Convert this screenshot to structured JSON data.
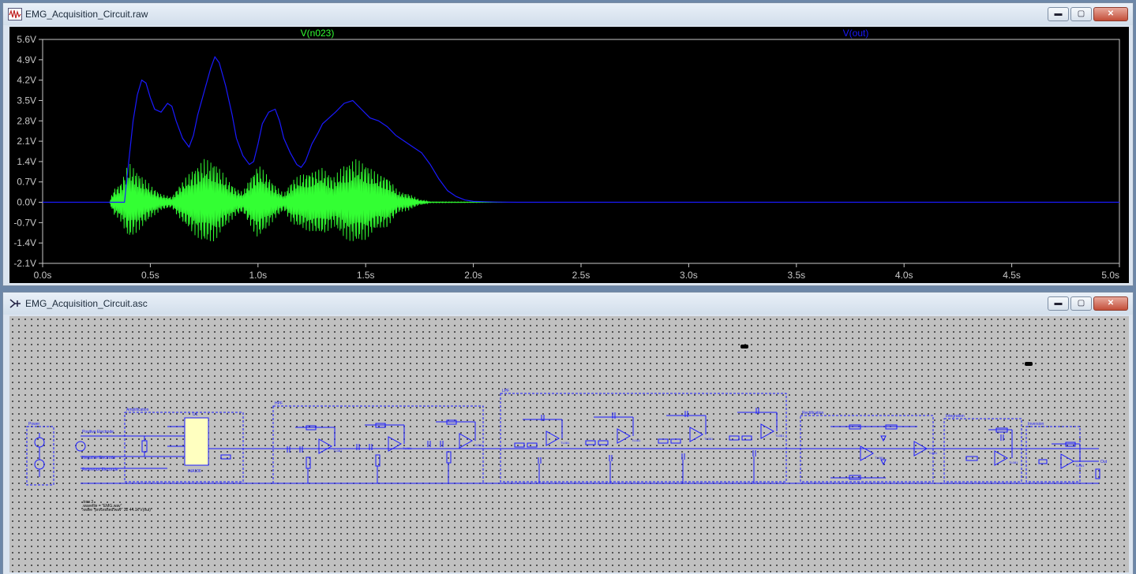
{
  "windows": {
    "waveform": {
      "title": "EMG_Acquisition_Circuit.raw",
      "traces": [
        {
          "label": "V(n023)",
          "color": "#33ff33"
        },
        {
          "label": "V(out)",
          "color": "#1a1aff"
        }
      ]
    },
    "schematic": {
      "title": "EMG_Acquisition_Circuit.asc",
      "blocks": [
        "Power",
        "Amplification",
        "HPF",
        "LPF",
        "Rectification",
        "Integration",
        "Inversion"
      ],
      "labels": {
        "positive_electrode": "Positive Electrode",
        "negative_electrode": "Negative Electrode",
        "reference_electrode": "Reference Electrode",
        "u1": "U1",
        "inamp": "INA106",
        "opamp": "TL081",
        "out": "Out"
      },
      "directives": [
        ".tran 3",
        ".wavefile = \"EMG.wav\"",
        ".wave \"processed.wav\" 32 44.1k V(out)"
      ]
    }
  },
  "window_buttons": {
    "minimize": "▬",
    "maximize": "▢",
    "close": "✕"
  },
  "chart_data": {
    "type": "line",
    "title": "",
    "xlabel": "",
    "ylabel": "",
    "xlim": [
      0,
      5
    ],
    "ylim": [
      -2.1,
      5.6
    ],
    "x_ticks": [
      "0.0s",
      "0.5s",
      "1.0s",
      "1.5s",
      "2.0s",
      "2.5s",
      "3.0s",
      "3.5s",
      "4.0s",
      "4.5s",
      "5.0s"
    ],
    "y_ticks": [
      "5.6V",
      "4.9V",
      "4.2V",
      "3.5V",
      "2.8V",
      "2.1V",
      "1.4V",
      "0.7V",
      "0.0V",
      "-0.7V",
      "-1.4V",
      "-2.1V"
    ],
    "series": [
      {
        "name": "V(out)",
        "color": "#1a1aff",
        "x": [
          0,
          0.38,
          0.4,
          0.42,
          0.44,
          0.46,
          0.48,
          0.5,
          0.52,
          0.55,
          0.58,
          0.6,
          0.62,
          0.65,
          0.68,
          0.7,
          0.72,
          0.75,
          0.78,
          0.8,
          0.82,
          0.85,
          0.88,
          0.9,
          0.93,
          0.96,
          0.98,
          1.0,
          1.02,
          1.05,
          1.08,
          1.1,
          1.12,
          1.15,
          1.18,
          1.2,
          1.22,
          1.25,
          1.28,
          1.3,
          1.33,
          1.36,
          1.4,
          1.44,
          1.48,
          1.52,
          1.56,
          1.6,
          1.64,
          1.68,
          1.72,
          1.76,
          1.8,
          1.84,
          1.88,
          1.92,
          1.96,
          2.0,
          2.05,
          2.1,
          2.2,
          5.0
        ],
        "y": [
          0,
          0,
          1.4,
          2.8,
          3.7,
          4.2,
          4.1,
          3.6,
          3.2,
          3.1,
          3.4,
          3.3,
          2.8,
          2.2,
          1.9,
          2.3,
          3.0,
          3.8,
          4.6,
          5.0,
          4.8,
          4.0,
          3.0,
          2.2,
          1.6,
          1.3,
          1.4,
          2.0,
          2.7,
          3.1,
          3.2,
          2.8,
          2.2,
          1.7,
          1.3,
          1.2,
          1.4,
          2.0,
          2.4,
          2.7,
          2.9,
          3.1,
          3.4,
          3.5,
          3.2,
          2.9,
          2.8,
          2.6,
          2.3,
          2.1,
          1.9,
          1.7,
          1.3,
          0.8,
          0.4,
          0.2,
          0.08,
          0.03,
          0.02,
          0.01,
          0,
          0
        ]
      },
      {
        "name": "V(n023)",
        "color": "#33ff33",
        "x": [
          0,
          0.31,
          0.33,
          0.36,
          0.4,
          0.45,
          0.5,
          0.55,
          0.6,
          0.63,
          0.66,
          0.7,
          0.75,
          0.8,
          0.85,
          0.9,
          0.93,
          0.96,
          1.0,
          1.04,
          1.08,
          1.12,
          1.16,
          1.2,
          1.25,
          1.3,
          1.35,
          1.4,
          1.45,
          1.5,
          1.55,
          1.6,
          1.65,
          1.7,
          1.75,
          1.8,
          2.2
        ],
        "y": [
          0,
          0,
          0.5,
          0.7,
          1.4,
          1.0,
          0.6,
          0.3,
          0.2,
          0.6,
          0.9,
          1.2,
          1.5,
          1.4,
          0.9,
          0.5,
          0.4,
          0.9,
          1.4,
          1.0,
          0.6,
          0.3,
          0.8,
          1.0,
          1.2,
          1.3,
          0.9,
          1.3,
          1.5,
          1.4,
          1.1,
          1.0,
          0.4,
          0.3,
          0.1,
          0.02,
          0
        ]
      }
    ]
  }
}
